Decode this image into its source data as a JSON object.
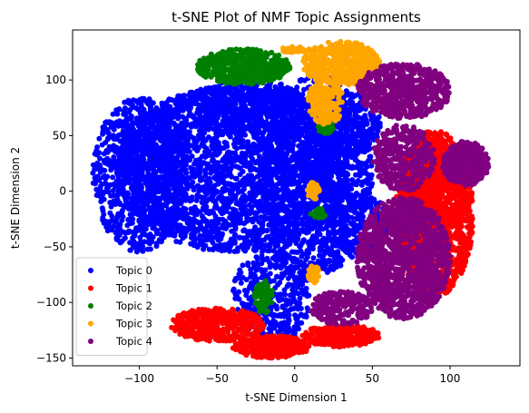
{
  "chart_data": {
    "type": "scatter",
    "title": "t-SNE Plot of NMF Topic Assignments",
    "xlabel": "t-SNE Dimension 1",
    "ylabel": "t-SNE Dimension 2",
    "xlim": [
      -143,
      145
    ],
    "ylim": [
      -157,
      145
    ],
    "xticks": [
      -100,
      -50,
      0,
      50,
      100
    ],
    "yticks": [
      -150,
      -100,
      -50,
      0,
      50,
      100
    ],
    "xtick_labels": [
      "−100",
      "−50",
      "0",
      "50",
      "100"
    ],
    "ytick_labels": [
      "−150",
      "−100",
      "−50",
      "0",
      "50",
      "100"
    ],
    "grid": false,
    "legend_position": "lower-left",
    "series": [
      {
        "name": "Topic 0",
        "color": "#0000ff",
        "clusters": [
          {
            "cx": -40,
            "cy": 20,
            "rx": 75,
            "ry": 75,
            "n": 2600
          },
          {
            "cx": -100,
            "cy": 15,
            "rx": 30,
            "ry": 70,
            "n": 900
          },
          {
            "cx": 15,
            "cy": 15,
            "rx": 35,
            "ry": 90,
            "n": 1100
          },
          {
            "cx": -30,
            "cy": 75,
            "rx": 40,
            "ry": 25,
            "n": 500
          },
          {
            "cx": 35,
            "cy": 60,
            "rx": 20,
            "ry": 30,
            "n": 300
          },
          {
            "cx": -15,
            "cy": -95,
            "rx": 25,
            "ry": 45,
            "n": 400
          },
          {
            "cx": 40,
            "cy": -30,
            "rx": 20,
            "ry": 30,
            "n": 250
          }
        ]
      },
      {
        "name": "Topic 1",
        "color": "#ff0000",
        "clusters": [
          {
            "cx": 90,
            "cy": -20,
            "rx": 25,
            "ry": 75,
            "n": 1500
          },
          {
            "cx": -50,
            "cy": -120,
            "rx": 30,
            "ry": 15,
            "n": 450
          },
          {
            "cx": -15,
            "cy": -140,
            "rx": 25,
            "ry": 10,
            "n": 400
          },
          {
            "cx": 30,
            "cy": -130,
            "rx": 25,
            "ry": 10,
            "n": 300
          },
          {
            "cx": 85,
            "cy": 5,
            "rx": 15,
            "ry": 15,
            "n": 150
          }
        ]
      },
      {
        "name": "Topic 2",
        "color": "#008000",
        "clusters": [
          {
            "cx": -33,
            "cy": 112,
            "rx": 30,
            "ry": 16,
            "n": 550
          },
          {
            "cx": -20,
            "cy": -95,
            "rx": 6,
            "ry": 15,
            "n": 90
          },
          {
            "cx": 20,
            "cy": 57,
            "rx": 5,
            "ry": 5,
            "n": 60
          },
          {
            "cx": 15,
            "cy": -20,
            "rx": 5,
            "ry": 5,
            "n": 30
          }
        ]
      },
      {
        "name": "Topic 3",
        "color": "#ffa500",
        "clusters": [
          {
            "cx": 30,
            "cy": 115,
            "rx": 25,
            "ry": 20,
            "n": 450
          },
          {
            "cx": 20,
            "cy": 80,
            "rx": 12,
            "ry": 20,
            "n": 200
          },
          {
            "cx": 12,
            "cy": 0,
            "rx": 4,
            "ry": 8,
            "n": 40
          },
          {
            "cx": 12,
            "cy": -75,
            "rx": 4,
            "ry": 8,
            "n": 40
          },
          {
            "cx": 0,
            "cy": 127,
            "rx": 10,
            "ry": 3,
            "n": 40
          }
        ]
      },
      {
        "name": "Topic 4",
        "color": "#800080",
        "clusters": [
          {
            "cx": 70,
            "cy": -60,
            "rx": 30,
            "ry": 55,
            "n": 1300
          },
          {
            "cx": 70,
            "cy": 90,
            "rx": 30,
            "ry": 25,
            "n": 600
          },
          {
            "cx": 110,
            "cy": 25,
            "rx": 15,
            "ry": 20,
            "n": 400
          },
          {
            "cx": 70,
            "cy": 30,
            "rx": 20,
            "ry": 30,
            "n": 350
          },
          {
            "cx": 30,
            "cy": -105,
            "rx": 20,
            "ry": 15,
            "n": 250
          }
        ]
      }
    ]
  }
}
